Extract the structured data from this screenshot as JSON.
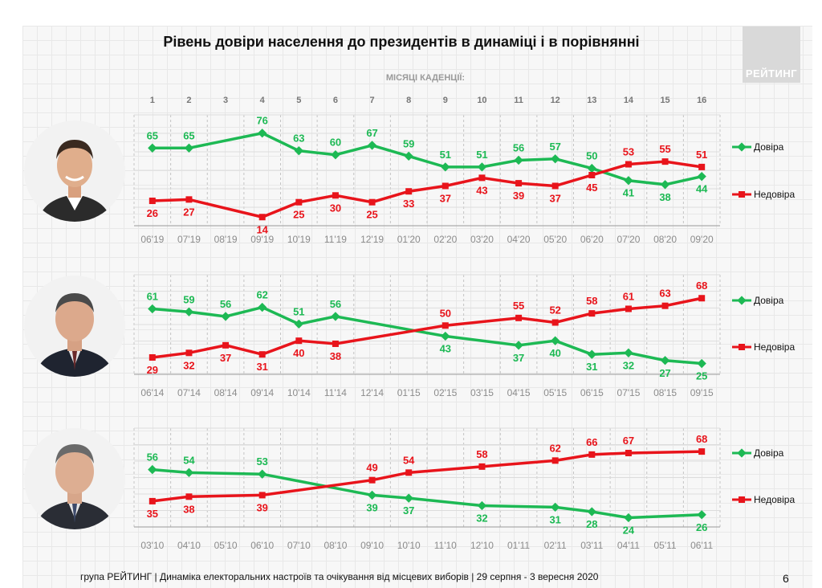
{
  "header": {
    "title": "Рівень довіри населення до президентів в динаміці і в порівнянні",
    "logo_text": "РЕЙТИНГ",
    "months_label": "МІСЯЦІ КАДЕНЦІЇ:"
  },
  "months": [
    "1",
    "2",
    "3",
    "4",
    "5",
    "6",
    "7",
    "8",
    "9",
    "10",
    "11",
    "12",
    "13",
    "14",
    "15",
    "16"
  ],
  "colors": {
    "trust": "#1db954",
    "distrust": "#e8141b",
    "axis_text": "#8c8c8c",
    "month_text": "#777777"
  },
  "legend": {
    "trust": "Довіра",
    "distrust": "Недовіра"
  },
  "chart_data": [
    {
      "type": "line",
      "portrait": "zelensky-photo",
      "categories": [
        "06'19",
        "07'19",
        "08'19",
        "09'19",
        "10'19",
        "11'19",
        "12'19",
        "01'20",
        "02'20",
        "03'20",
        "04'20",
        "05'20",
        "06'20",
        "07'20",
        "08'20",
        "09'20"
      ],
      "series": [
        {
          "name": "Довіра",
          "values": [
            65,
            65,
            null,
            76,
            63,
            60,
            67,
            59,
            51,
            51,
            56,
            57,
            50,
            41,
            38,
            44
          ]
        },
        {
          "name": "Недовіра",
          "values": [
            26,
            27,
            null,
            14,
            25,
            30,
            25,
            33,
            37,
            43,
            39,
            37,
            45,
            53,
            55,
            51
          ]
        }
      ],
      "ylim": [
        10,
        80
      ],
      "grid": true,
      "legend_position": "right"
    },
    {
      "type": "line",
      "portrait": "poroshenko-photo",
      "categories": [
        "06'14",
        "07'14",
        "08'14",
        "09'14",
        "10'14",
        "11'14",
        "12'14",
        "01'15",
        "02'15",
        "03'15",
        "04'15",
        "05'15",
        "06'15",
        "07'15",
        "08'15",
        "09'15"
      ],
      "series": [
        {
          "name": "Довіра",
          "values": [
            61,
            59,
            56,
            62,
            51,
            56,
            null,
            null,
            43,
            null,
            37,
            40,
            31,
            32,
            27,
            25
          ]
        },
        {
          "name": "Недовіра",
          "values": [
            29,
            32,
            37,
            31,
            40,
            38,
            null,
            null,
            50,
            null,
            55,
            52,
            58,
            61,
            63,
            68
          ]
        }
      ],
      "ylim": [
        20,
        75
      ],
      "grid": true,
      "legend_position": "right"
    },
    {
      "type": "line",
      "portrait": "yanukovych-photo",
      "categories": [
        "03'10",
        "04'10",
        "05'10",
        "06'10",
        "07'10",
        "08'10",
        "09'10",
        "10'10",
        "11'10",
        "12'10",
        "01'11",
        "02'11",
        "03'11",
        "04'11",
        "05'11",
        "06'11"
      ],
      "series": [
        {
          "name": "Довіра",
          "values": [
            56,
            54,
            null,
            53,
            null,
            null,
            39,
            37,
            null,
            32,
            null,
            31,
            28,
            24,
            null,
            26
          ]
        },
        {
          "name": "Недовіра",
          "values": [
            35,
            38,
            null,
            39,
            null,
            null,
            49,
            54,
            null,
            58,
            null,
            62,
            66,
            67,
            null,
            68
          ]
        }
      ],
      "ylim": [
        20,
        75
      ],
      "grid": true,
      "legend_position": "right"
    }
  ],
  "footer": {
    "text": "група РЕЙТИНГ | Динаміка електоральних настроїв та очікування від місцевих виборів | 29 серпня - 3 вересня 2020",
    "page": "6"
  }
}
